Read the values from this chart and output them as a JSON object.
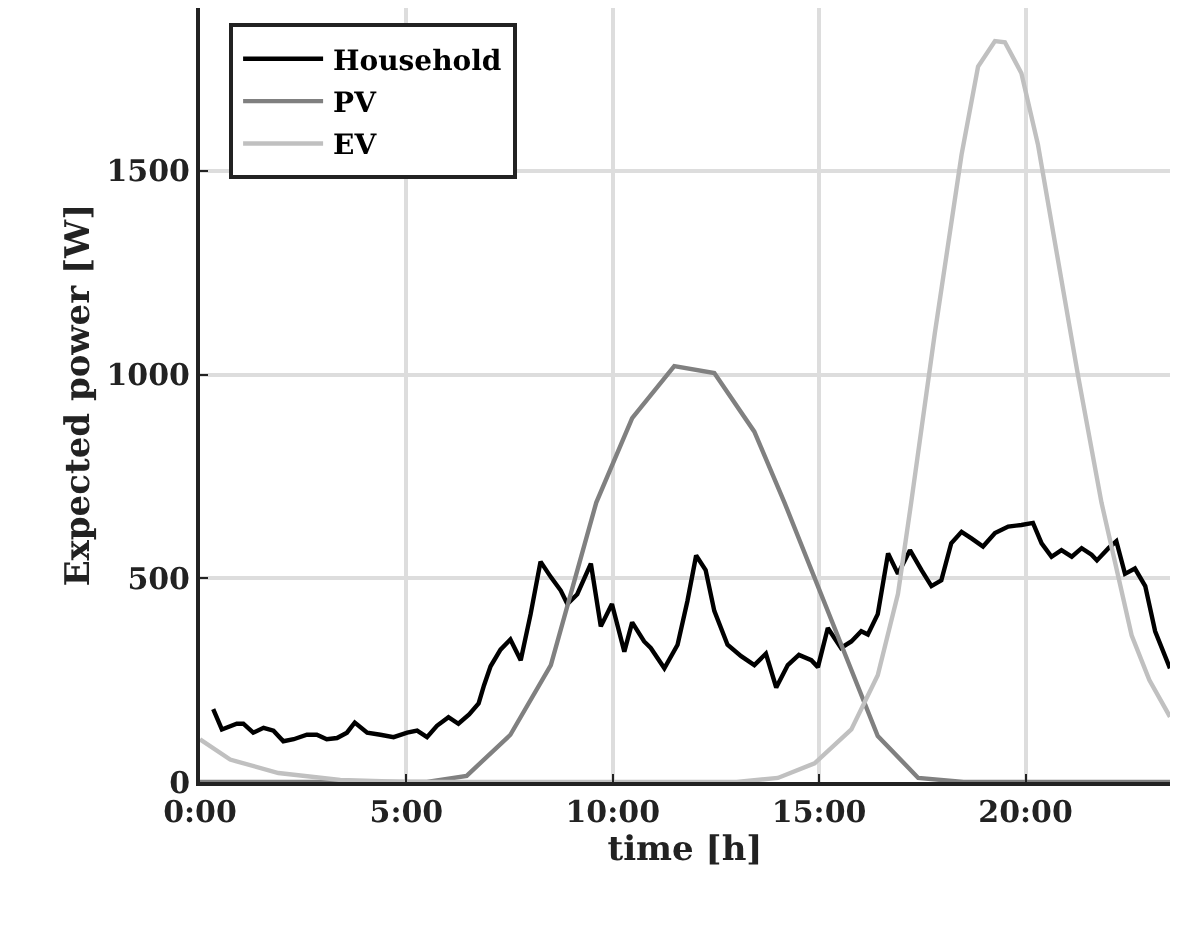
{
  "chart_data": {
    "type": "line",
    "xlabel": "time [h]",
    "ylabel": "Expected power [W]",
    "xlim": [
      0,
      23.5
    ],
    "ylim": [
      0,
      1900
    ],
    "xticks": [
      {
        "value": 0,
        "label": "0:00"
      },
      {
        "value": 5,
        "label": "5:00"
      },
      {
        "value": 10,
        "label": "10:00"
      },
      {
        "value": 15,
        "label": "15:00"
      },
      {
        "value": 20,
        "label": "20:00"
      }
    ],
    "yticks": [
      0,
      500,
      1000,
      1500
    ],
    "grid": true,
    "legend": "top left",
    "marker": "none",
    "line_style": "solid",
    "series": [
      {
        "name": "Household",
        "color": "#000000",
        "x": [
          0.32,
          0.53,
          0.89,
          1.05,
          1.29,
          1.54,
          1.78,
          2.02,
          2.27,
          2.59,
          2.83,
          3.07,
          3.32,
          3.56,
          3.75,
          4.05,
          4.37,
          4.69,
          5.02,
          5.26,
          5.5,
          5.74,
          6.02,
          6.26,
          6.52,
          6.75,
          6.88,
          7.04,
          7.28,
          7.52,
          7.77,
          8.01,
          8.25,
          8.5,
          8.74,
          8.9,
          9.14,
          9.47,
          9.71,
          9.98,
          10.28,
          10.47,
          10.76,
          10.92,
          11.25,
          11.57,
          11.81,
          12.02,
          12.25,
          12.46,
          12.78,
          13.11,
          13.43,
          13.71,
          13.96,
          14.24,
          14.51,
          14.81,
          14.97,
          15.21,
          15.53,
          15.78,
          16.02,
          16.18,
          16.42,
          16.67,
          16.91,
          17.2,
          17.48,
          17.72,
          17.96,
          18.2,
          18.45,
          18.69,
          18.97,
          19.26,
          19.58,
          19.9,
          20.18,
          20.39,
          20.63,
          20.87,
          21.12,
          21.36,
          21.6,
          21.73,
          22.01,
          22.2,
          22.41,
          22.65,
          22.9,
          23.14,
          23.5
        ],
        "values": [
          179,
          129,
          143,
          143,
          121,
          133,
          126,
          100,
          105,
          116,
          116,
          105,
          108,
          121,
          146,
          121,
          116,
          110,
          121,
          126,
          110,
          138,
          159,
          143,
          166,
          193,
          237,
          284,
          325,
          350,
          299,
          412,
          541,
          503,
          470,
          437,
          461,
          536,
          382,
          437,
          320,
          392,
          345,
          329,
          279,
          337,
          445,
          556,
          520,
          420,
          337,
          309,
          287,
          315,
          232,
          287,
          312,
          299,
          282,
          378,
          329,
          345,
          370,
          362,
          412,
          561,
          511,
          569,
          520,
          481,
          495,
          586,
          614,
          598,
          578,
          611,
          627,
          631,
          636,
          586,
          553,
          569,
          553,
          574,
          558,
          544,
          574,
          591,
          511,
          524,
          481,
          370,
          279
        ]
      },
      {
        "name": "PV",
        "color": "#808080",
        "x": [
          0,
          5.5,
          6.46,
          7.52,
          8.5,
          9.6,
          10.47,
          11.49,
          12.46,
          13.43,
          14.16,
          16.42,
          17.4,
          18.5,
          23.5
        ],
        "values": [
          0,
          0,
          15,
          116,
          287,
          686,
          893,
          1021,
          1004,
          860,
          686,
          113,
          10,
          0,
          0
        ]
      },
      {
        "name": "EV",
        "color": "#c0c0c0",
        "x": [
          0,
          0.73,
          1.9,
          3.4,
          5,
          13,
          14,
          14.89,
          15.78,
          16.42,
          16.91,
          17.23,
          17.8,
          18.45,
          18.85,
          19.26,
          19.5,
          19.9,
          20.3,
          21.28,
          21.84,
          22.57,
          23,
          23.5
        ],
        "values": [
          105,
          55,
          22,
          5,
          0,
          0,
          10,
          46,
          129,
          262,
          462,
          686,
          1100,
          1540,
          1756,
          1819,
          1816,
          1740,
          1565,
          993,
          686,
          360,
          250,
          160
        ]
      }
    ]
  }
}
